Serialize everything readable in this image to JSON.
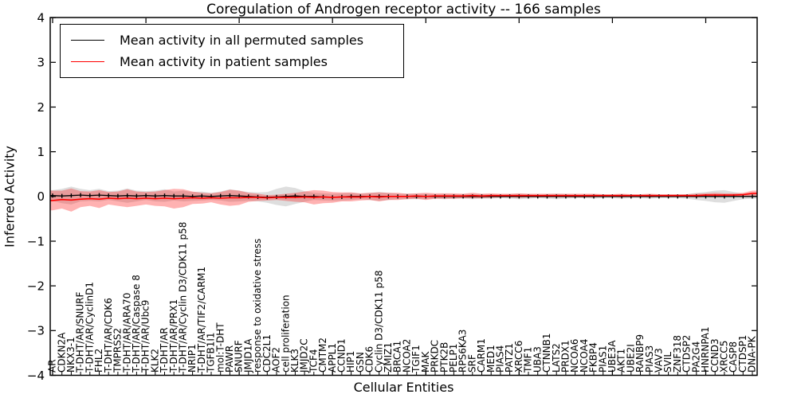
{
  "chart_data": {
    "type": "line",
    "title": "Coregulation of Androgen receptor activity -- 166 samples",
    "xlabel": "Cellular Entities",
    "ylabel": "Inferred Activity",
    "ylim": [
      -4,
      4
    ],
    "y_ticks": [
      {
        "v": -4,
        "label": "−4"
      },
      {
        "v": -3,
        "label": "−3"
      },
      {
        "v": -2,
        "label": "−2"
      },
      {
        "v": -1,
        "label": "−1"
      },
      {
        "v": 0,
        "label": "0"
      },
      {
        "v": 1,
        "label": "1"
      },
      {
        "v": 2,
        "label": "2"
      },
      {
        "v": 3,
        "label": "3"
      },
      {
        "v": 4,
        "label": "4"
      }
    ],
    "grid": false,
    "legend_position": "upper left",
    "categories": [
      "AR",
      "CDKN2A",
      "NKX3-1",
      "T-DHT/AR/SNURF",
      "T-DHT/AR/CyclinD1",
      "FHL2",
      "T-DHT/AR/CDK6",
      "TMPRSS2",
      "T-DHT/AR/ARA70",
      "T-DHT/AR/Caspase 8",
      "T-DHT/AR/Ubc9",
      "KLK2",
      "T-DHT/AR",
      "T-DHT/AR/PRX1",
      "T-DHT/AR/Cyclin D3/CDK11 p58",
      "NRIP1",
      "T-DHT/AR/TIF2/CARM1",
      "TGFB1I1",
      "mol:T-DHT",
      "PAWR",
      "SNURF",
      "JMJD1A",
      "response to oxidative stress",
      "CDC2L1",
      "AOF2",
      "cell proliferation",
      "KLK3",
      "JMJD2C",
      "TCF4",
      "CMTM2",
      "APPL1",
      "CCND1",
      "HIP1",
      "GSN",
      "CDK6",
      "Cyclin D3/CDK11 p58",
      "ZMIZ1",
      "BRCA1",
      "NCOA2",
      "TGIF1",
      "MAK",
      "PRKDC",
      "PTK2B",
      "PELP1",
      "RPS6KA3",
      "SRF",
      "CARM1",
      "MED1",
      "PIAS4",
      "PATZ1",
      "XRCC6",
      "TMF1",
      "UBA3",
      "CTNNB1",
      "LATS2",
      "PRDX1",
      "NCOA6",
      "NCOA4",
      "FKBP4",
      "PIAS1",
      "UBE3A",
      "AKT1",
      "UBE2I",
      "RANBP9",
      "PIAS3",
      "VAV3",
      "SVIL",
      "ZNF318",
      "CTDSP2",
      "PA2G4",
      "HNRNPA1",
      "CCND3",
      "XRCC5",
      "CASP8",
      "CTDSP1",
      "DNA-PK"
    ],
    "series": [
      {
        "name": "Mean activity in all permuted samples",
        "color": "#000000",
        "band_color": "#999999",
        "values": [
          0.02,
          0.01,
          0.02,
          0.03,
          0.02,
          0.03,
          0.02,
          0.01,
          0.02,
          0.01,
          0.02,
          0.01,
          0.02,
          0.01,
          0.01,
          0.0,
          0.01,
          0.0,
          0.01,
          0.02,
          0.01,
          0.0,
          -0.01,
          -0.02,
          -0.01,
          0.0,
          0.01,
          0.0,
          0.0,
          -0.01,
          -0.02,
          -0.01,
          0.0,
          0.0,
          0.0,
          0.0,
          0.0,
          0.0,
          0.0,
          0.0,
          0.0,
          0.0,
          0.0,
          0.0,
          0.0,
          0.0,
          0.0,
          0.0,
          0.0,
          0.0,
          0.0,
          0.0,
          0.0,
          0.0,
          0.0,
          0.0,
          0.0,
          0.0,
          0.0,
          0.0,
          0.0,
          0.0,
          0.0,
          0.0,
          0.0,
          0.0,
          0.0,
          0.0,
          0.0,
          0.0,
          0.0,
          0.0,
          0.0,
          0.0,
          0.0,
          0.0
        ],
        "band_halfwidth": [
          0.12,
          0.16,
          0.2,
          0.14,
          0.12,
          0.14,
          0.1,
          0.12,
          0.16,
          0.12,
          0.1,
          0.12,
          0.14,
          0.1,
          0.12,
          0.1,
          0.1,
          0.08,
          0.1,
          0.14,
          0.12,
          0.1,
          0.1,
          0.12,
          0.18,
          0.22,
          0.18,
          0.12,
          0.08,
          0.08,
          0.08,
          0.08,
          0.08,
          0.06,
          0.08,
          0.1,
          0.08,
          0.06,
          0.06,
          0.06,
          0.06,
          0.05,
          0.06,
          0.05,
          0.05,
          0.06,
          0.05,
          0.05,
          0.04,
          0.05,
          0.06,
          0.05,
          0.04,
          0.05,
          0.06,
          0.05,
          0.04,
          0.04,
          0.05,
          0.04,
          0.04,
          0.05,
          0.04,
          0.04,
          0.05,
          0.04,
          0.04,
          0.04,
          0.05,
          0.08,
          0.1,
          0.13,
          0.14,
          0.1,
          0.06,
          0.05
        ]
      },
      {
        "name": "Mean activity in patient samples",
        "color": "#ff0000",
        "band_color": "#ff0000",
        "values": [
          -0.09,
          -0.07,
          -0.08,
          -0.06,
          -0.05,
          -0.06,
          -0.04,
          -0.05,
          -0.04,
          -0.05,
          -0.04,
          -0.05,
          -0.04,
          -0.05,
          -0.04,
          -0.03,
          -0.04,
          -0.03,
          -0.04,
          -0.03,
          -0.03,
          -0.02,
          -0.02,
          -0.03,
          -0.02,
          -0.02,
          -0.02,
          -0.01,
          -0.02,
          -0.01,
          -0.02,
          -0.01,
          -0.01,
          -0.01,
          0.0,
          -0.01,
          0.0,
          0.0,
          0.0,
          0.01,
          0.0,
          0.01,
          0.01,
          0.01,
          0.01,
          0.02,
          0.01,
          0.02,
          0.02,
          0.02,
          0.02,
          0.02,
          0.02,
          0.02,
          0.02,
          0.02,
          0.02,
          0.02,
          0.02,
          0.02,
          0.02,
          0.02,
          0.02,
          0.02,
          0.02,
          0.02,
          0.02,
          0.02,
          0.02,
          0.02,
          0.03,
          0.03,
          0.03,
          0.03,
          0.04,
          0.07
        ],
        "band_halfwidth": [
          0.22,
          0.2,
          0.26,
          0.18,
          0.16,
          0.2,
          0.14,
          0.16,
          0.2,
          0.16,
          0.14,
          0.16,
          0.18,
          0.22,
          0.2,
          0.14,
          0.12,
          0.1,
          0.14,
          0.18,
          0.16,
          0.1,
          0.08,
          0.06,
          0.06,
          0.08,
          0.1,
          0.12,
          0.16,
          0.14,
          0.12,
          0.1,
          0.1,
          0.08,
          0.08,
          0.1,
          0.08,
          0.08,
          0.06,
          0.06,
          0.08,
          0.06,
          0.06,
          0.06,
          0.05,
          0.06,
          0.05,
          0.05,
          0.04,
          0.04,
          0.05,
          0.04,
          0.04,
          0.04,
          0.04,
          0.04,
          0.04,
          0.04,
          0.04,
          0.03,
          0.03,
          0.04,
          0.03,
          0.03,
          0.04,
          0.03,
          0.03,
          0.03,
          0.03,
          0.04,
          0.04,
          0.05,
          0.04,
          0.04,
          0.04,
          0.06
        ]
      }
    ]
  },
  "colors": {
    "frame": "#000000",
    "background": "#ffffff",
    "permuted_line": "#000000",
    "patient_line": "#ff0000",
    "permuted_band": "#999999",
    "patient_band": "#ff0000"
  }
}
